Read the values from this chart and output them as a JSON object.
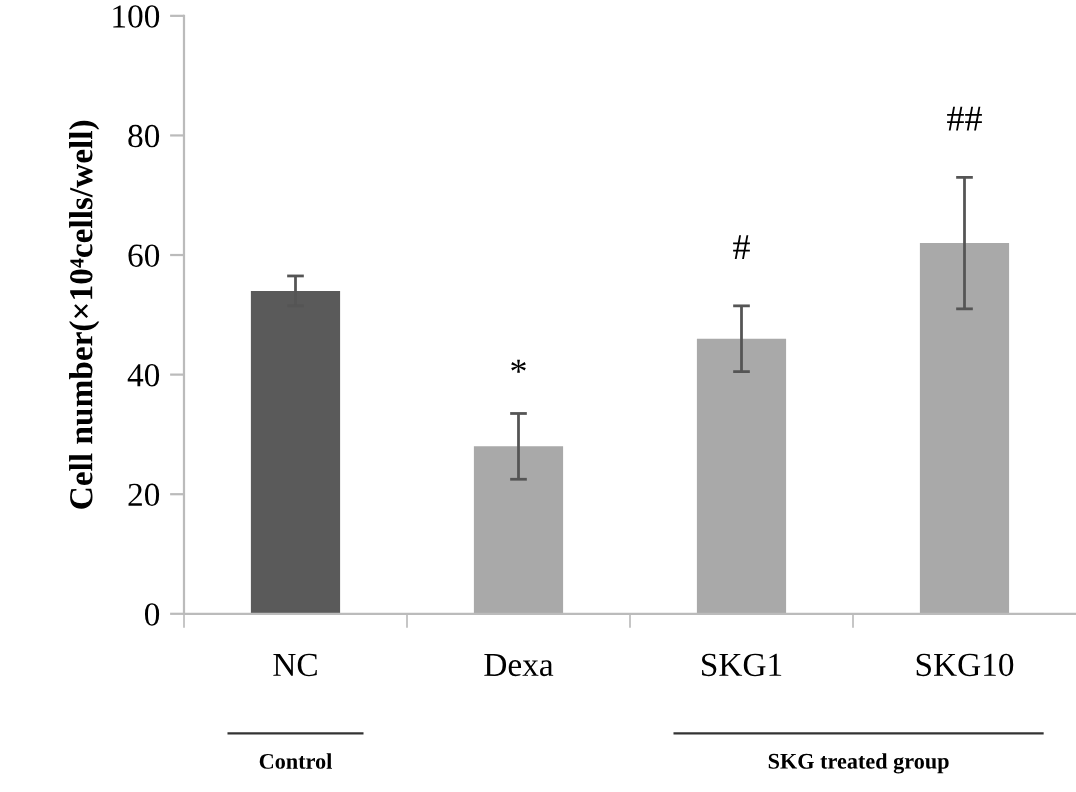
{
  "chart_data": {
    "type": "bar",
    "ylabel": "Cell number(×10⁴cells/well)",
    "categories": [
      "NC",
      "Dexa",
      "SKG1",
      "SKG10"
    ],
    "values": [
      54,
      28,
      46,
      62
    ],
    "colors": [
      "#5a5a5a",
      "#a9a9a9",
      "#a9a9a9",
      "#a9a9a9"
    ],
    "errors": [
      2.5,
      5.5,
      5.5,
      11
    ],
    "ylim": [
      0,
      100
    ],
    "yticks": [
      0,
      20,
      40,
      60,
      80,
      100
    ],
    "grid": false,
    "legend": false,
    "annotations": [
      "*",
      "#",
      "##",
      "Control",
      "SKG treated group"
    ]
  }
}
